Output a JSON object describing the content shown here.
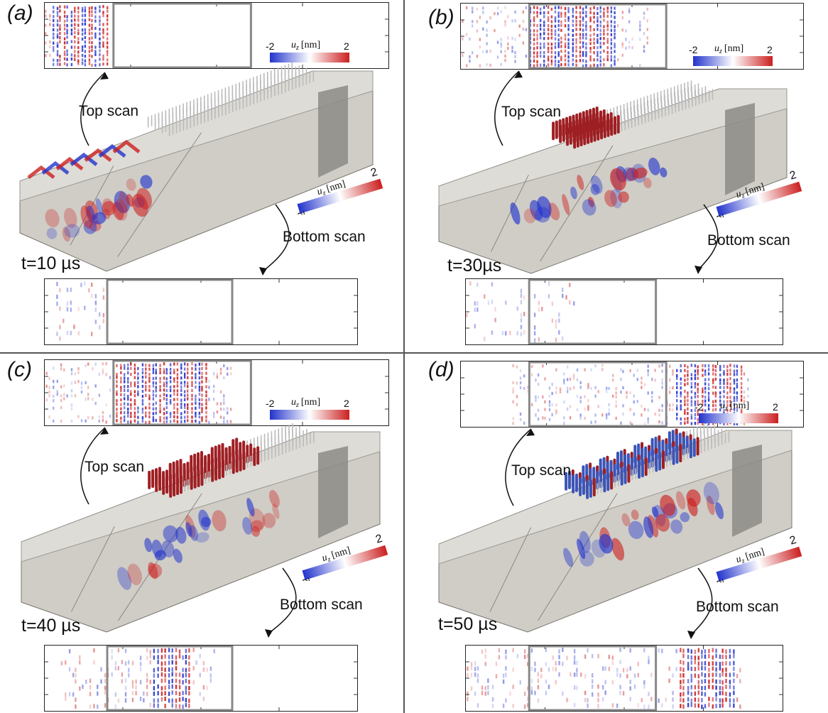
{
  "panels": [
    {
      "id": "a",
      "label": "(a)",
      "time": "t=10 µs"
    },
    {
      "id": "b",
      "label": "(b)",
      "time": "t=30µs"
    },
    {
      "id": "c",
      "label": "(c)",
      "time": "t=40 µs"
    },
    {
      "id": "d",
      "label": "(d)",
      "time": "t=50 µs"
    }
  ],
  "captions": {
    "top_scan": "Top scan",
    "bottom_scan": "Bottom scan"
  },
  "colorbar": {
    "min": "-2",
    "max": "2",
    "quantity": "u",
    "subscript": "z",
    "unit": "[nm]"
  },
  "colors": {
    "negative": "#2233cc",
    "positive": "#cc1f1f",
    "beam_face": "#cfcdc6",
    "beam_top": "#dedcd6",
    "beam_dark": "#8d8b86",
    "frame": "#888888"
  }
}
